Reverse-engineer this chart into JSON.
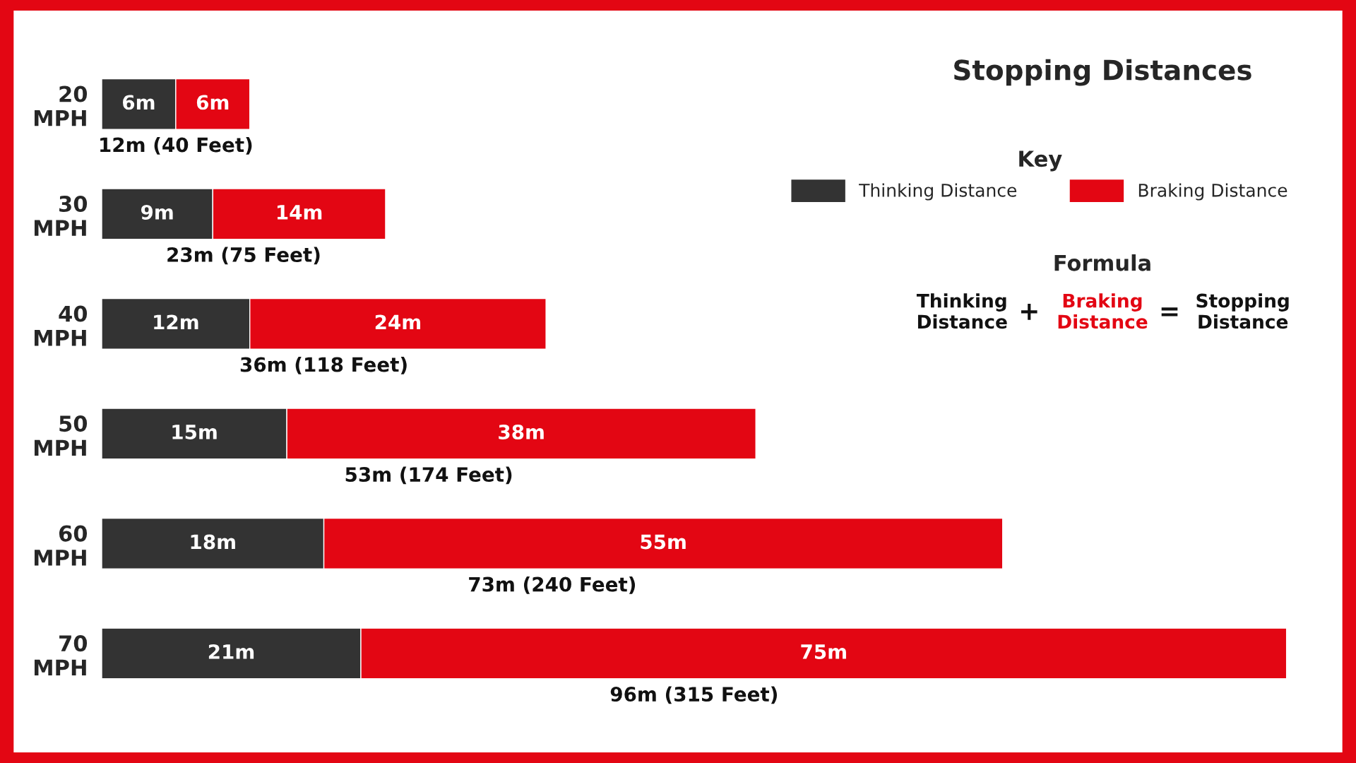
{
  "chart_data": {
    "type": "bar",
    "orientation": "horizontal",
    "stacked": true,
    "title": "Stopping Distances",
    "legend_title": "Key",
    "legend": "top right",
    "categories": [
      "20\nMPH",
      "30\nMPH",
      "40\nMPH",
      "50\nMPH",
      "60\nMPH",
      "70\nMPH"
    ],
    "series": [
      {
        "name": "Thinking Distance",
        "color": "#333333",
        "values": [
          6,
          9,
          12,
          15,
          18,
          21
        ],
        "value_labels": [
          "6m",
          "9m",
          "12m",
          "15m",
          "18m",
          "21m"
        ]
      },
      {
        "name": "Braking Distance",
        "color": "#e30613",
        "values": [
          6,
          14,
          24,
          38,
          55,
          75
        ],
        "value_labels": [
          "6m",
          "14m",
          "24m",
          "38m",
          "55m",
          "75m"
        ]
      }
    ],
    "totals": [
      "12m (40 Feet)",
      "23m (75 Feet)",
      "36m (118 Feet)",
      "53m (174 Feet)",
      "73m (240 Feet)",
      "96m (315 Feet)"
    ],
    "annotations": [
      "Formula",
      "Thinking\nDistance",
      "+",
      "Braking\nDistance",
      "=",
      "Stopping\nDistance"
    ]
  }
}
